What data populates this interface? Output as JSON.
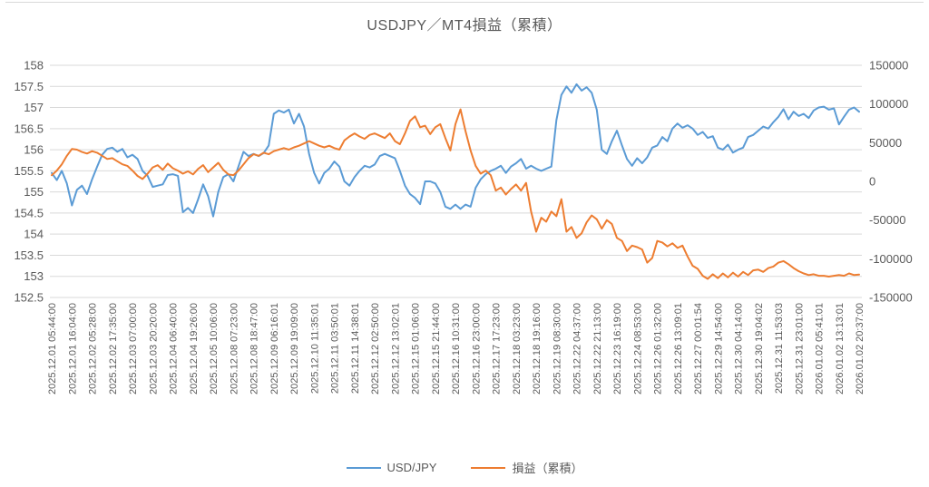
{
  "page": {
    "title": "USDJPY／MT4損益（累積）"
  },
  "colors": {
    "usdjpy_line": "#5B9BD5",
    "pnl_line": "#ED7D31",
    "grid": "#D9D9D9",
    "axis_text": "#595959",
    "title_text": "#595959",
    "background": "#FFFFFF"
  },
  "legend": {
    "items": [
      {
        "label": "USD/JPY",
        "color": "#5B9BD5"
      },
      {
        "label": "損益（累積）",
        "color": "#ED7D31"
      }
    ]
  },
  "chart_data": {
    "type": "line",
    "title": "USDJPY／MT4損益（累積）",
    "grid": true,
    "legend_position": "bottom",
    "points_per_label": 4,
    "x_labels": [
      "2025.12.01 05:44:00",
      "2025.12.01 16:04:00",
      "2025.12.02 05:28:00",
      "2025.12.02 17:35:00",
      "2025.12.03 07:00:00",
      "2025.12.03 20:20:00",
      "2025.12.04 06:40:00",
      "2025.12.04 19:26:00",
      "2025.12.05 10:06:00",
      "2025.12.08 07:23:00",
      "2025.12.08 18:47:00",
      "2025.12.09 06:16:01",
      "2025.12.09 19:09:00",
      "2025.12.10 11:35:01",
      "2025.12.11 03:50:01",
      "2025.12.11 14:38:01",
      "2025.12.12 02:50:00",
      "2025.12.12 13:02:01",
      "2025.12.15 01:06:00",
      "2025.12.15 21:44:00",
      "2025.12.16 10:31:00",
      "2025.12.16 23:00:00",
      "2025.12.17 17:23:00",
      "2025.12.18 03:23:00",
      "2025.12.18 19:16:00",
      "2025.12.19 08:30:00",
      "2025.12.22 04:37:00",
      "2025.12.22 21:13:00",
      "2025.12.23 16:19:00",
      "2025.12.24 08:53:00",
      "2025.12.26 01:32:00",
      "2025.12.26 13:09:01",
      "2025.12.27 00:01:54",
      "2025.12.29 14:54:00",
      "2025.12.30 04:14:00",
      "2025.12.30 19:04:02",
      "2025.12.31 11:53:03",
      "2025.12.31 23:01:00",
      "2026.01.02 05:41:01",
      "2026.01.02 13:13:01",
      "2026.01.02 20:37:00"
    ],
    "left_axis": {
      "min": 152.5,
      "max": 158,
      "tick_step": 0.5,
      "ticks": [
        158,
        157.5,
        157,
        156.5,
        156,
        155.5,
        155,
        154.5,
        154,
        153.5,
        153,
        152.5
      ]
    },
    "right_axis": {
      "min": -150000,
      "max": 150000,
      "tick_step": 50000,
      "ticks": [
        150000,
        100000,
        50000,
        0,
        -50000,
        -100000,
        -150000
      ]
    },
    "series": [
      {
        "name": "USD/JPY",
        "axis": "left",
        "color": "#5B9BD5",
        "values": [
          155.45,
          155.28,
          155.5,
          155.2,
          154.68,
          155.05,
          155.15,
          154.95,
          155.3,
          155.6,
          155.88,
          156.02,
          156.05,
          155.95,
          156.02,
          155.82,
          155.88,
          155.78,
          155.5,
          155.38,
          155.12,
          155.15,
          155.18,
          155.4,
          155.42,
          155.38,
          154.52,
          154.62,
          154.5,
          154.82,
          155.18,
          154.9,
          154.42,
          155.0,
          155.35,
          155.42,
          155.25,
          155.6,
          155.95,
          155.85,
          155.9,
          155.85,
          155.92,
          156.1,
          156.85,
          156.93,
          156.88,
          156.95,
          156.62,
          156.85,
          156.55,
          155.9,
          155.45,
          155.2,
          155.45,
          155.55,
          155.72,
          155.6,
          155.25,
          155.15,
          155.35,
          155.5,
          155.62,
          155.58,
          155.65,
          155.85,
          155.9,
          155.85,
          155.8,
          155.5,
          155.15,
          154.95,
          154.86,
          154.71,
          155.25,
          155.25,
          155.2,
          155.0,
          154.65,
          154.6,
          154.7,
          154.6,
          154.7,
          154.65,
          155.1,
          155.3,
          155.42,
          155.5,
          155.55,
          155.62,
          155.45,
          155.6,
          155.68,
          155.78,
          155.55,
          155.62,
          155.55,
          155.5,
          155.55,
          155.6,
          156.7,
          157.3,
          157.5,
          157.35,
          157.55,
          157.4,
          157.48,
          157.35,
          156.95,
          156.0,
          155.9,
          156.2,
          156.45,
          156.1,
          155.78,
          155.62,
          155.8,
          155.68,
          155.82,
          156.05,
          156.1,
          156.3,
          156.2,
          156.5,
          156.62,
          156.52,
          156.58,
          156.5,
          156.35,
          156.42,
          156.28,
          156.32,
          156.05,
          156.0,
          156.12,
          155.93,
          156.0,
          156.05,
          156.3,
          156.35,
          156.45,
          156.55,
          156.5,
          156.65,
          156.78,
          156.96,
          156.72,
          156.9,
          156.8,
          156.85,
          156.75,
          156.93,
          157.0,
          157.02,
          156.95,
          156.98,
          156.6,
          156.78,
          156.95,
          157.0,
          156.9
        ]
      },
      {
        "name": "損益（累積）",
        "axis": "right",
        "color": "#ED7D31",
        "values": [
          8000,
          14000,
          22000,
          33000,
          42000,
          41000,
          38000,
          36000,
          39000,
          37000,
          33000,
          29000,
          30000,
          26000,
          22000,
          20000,
          14000,
          7000,
          3000,
          10000,
          18000,
          21000,
          15000,
          23000,
          17000,
          14000,
          10000,
          13000,
          9000,
          16000,
          21000,
          12000,
          18000,
          24000,
          15000,
          9000,
          8000,
          14000,
          22000,
          30000,
          35000,
          33000,
          37000,
          35000,
          39000,
          41000,
          43000,
          41000,
          44000,
          46000,
          49000,
          52000,
          49000,
          46000,
          44000,
          46000,
          43000,
          41000,
          53000,
          58000,
          62000,
          58000,
          55000,
          60000,
          62000,
          59000,
          56000,
          62000,
          52000,
          48000,
          62000,
          78000,
          84000,
          70000,
          72000,
          61000,
          70000,
          74000,
          56000,
          40000,
          74000,
          93000,
          65000,
          40000,
          20000,
          10000,
          14000,
          8000,
          -12000,
          -8000,
          -17000,
          -10000,
          -4000,
          -12000,
          -2000,
          -39000,
          -65000,
          -47000,
          -52000,
          -39000,
          -45000,
          -23000,
          -65000,
          -59000,
          -73000,
          -67000,
          -53000,
          -44000,
          -49000,
          -61000,
          -50000,
          -55000,
          -73000,
          -77000,
          -90000,
          -83000,
          -85000,
          -88000,
          -105000,
          -99000,
          -77000,
          -79000,
          -84000,
          -80000,
          -86000,
          -83000,
          -97000,
          -109000,
          -113000,
          -122000,
          -126000,
          -120000,
          -125000,
          -119000,
          -124000,
          -118000,
          -123000,
          -117000,
          -121000,
          -115000,
          -114000,
          -117000,
          -112000,
          -110000,
          -105000,
          -103000,
          -107000,
          -112000,
          -116000,
          -119000,
          -121000,
          -120000,
          -122000,
          -122000,
          -123000,
          -122000,
          -121000,
          -122000,
          -119000,
          -121000,
          -120500
        ]
      }
    ]
  }
}
